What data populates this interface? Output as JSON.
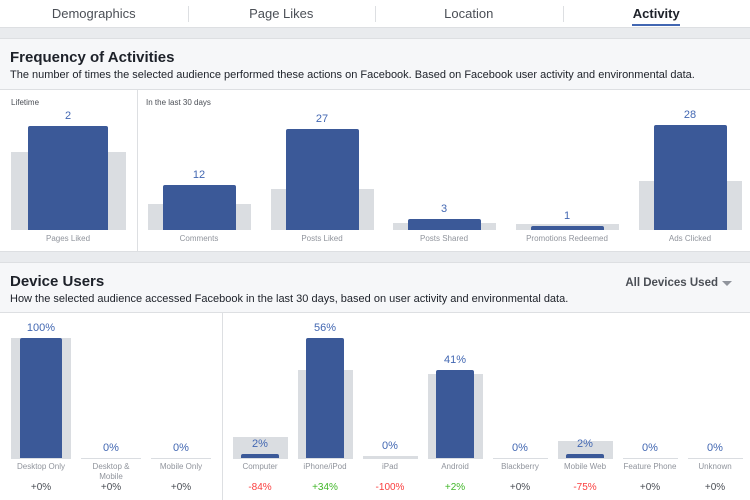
{
  "tabs": [
    {
      "label": "Demographics",
      "active": false
    },
    {
      "label": "Page Likes",
      "active": false
    },
    {
      "label": "Location",
      "active": false
    },
    {
      "label": "Activity",
      "active": true
    }
  ],
  "frequency": {
    "title": "Frequency of Activities",
    "subtitle": "The number of times the selected audience performed these actions on Facebook. Based on Facebook user activity and environmental data.",
    "lifetime_label": "Lifetime",
    "last30_label": "In the last 30 days"
  },
  "device": {
    "title": "Device Users",
    "subtitle": "How the selected audience accessed Facebook in the last 30 days, based on user activity and environmental data.",
    "dropdown_label": "All Devices Used"
  },
  "colors": {
    "audience": "#3b5998",
    "comparison": "#dadde1",
    "value_text": "#4267b2",
    "positive": "#42b72a",
    "negative": "#fa3e3e",
    "neutral": "#4b4f56"
  },
  "chart_data": [
    {
      "type": "bar",
      "title": "Frequency of Activities",
      "panel": "Lifetime",
      "categories": [
        "Pages Liked"
      ],
      "series": [
        {
          "values": [
            2
          ]
        },
        {
          "values": [
            1.5
          ]
        }
      ],
      "ylim": [
        0,
        2.3
      ]
    },
    {
      "type": "bar",
      "title": "Frequency of Activities",
      "panel": "In the last 30 days",
      "categories": [
        "Comments",
        "Posts Liked",
        "Posts Shared",
        "Promotions Redeemed",
        "Ads Clicked"
      ],
      "series": [
        {
          "values": [
            12,
            27,
            3,
            1,
            28
          ]
        },
        {
          "values": [
            7,
            11,
            2,
            1.5,
            13
          ]
        }
      ],
      "ylim": [
        0,
        32
      ]
    },
    {
      "type": "bar",
      "title": "Device Users",
      "categories": [
        "Desktop Only",
        "Desktop & Mobile",
        "Mobile Only"
      ],
      "series": [
        {
          "values": [
            100,
            0,
            0
          ]
        },
        {
          "values": [
            100,
            0,
            0
          ]
        }
      ],
      "changes": [
        "+0%",
        "+0%",
        "+0%"
      ],
      "ylim": [
        0,
        100
      ]
    },
    {
      "type": "bar",
      "title": "Device Users",
      "categories": [
        "Computer",
        "iPhone/iPod",
        "iPad",
        "Android",
        "Blackberry",
        "Mobile Web",
        "Feature Phone",
        "Unknown"
      ],
      "series": [
        {
          "values": [
            2,
            56,
            0,
            41,
            0,
            2,
            0,
            0
          ]
        },
        {
          "values": [
            10,
            41,
            1,
            39,
            0,
            8,
            0,
            0
          ]
        }
      ],
      "value_labels": [
        "2%",
        "56%",
        "0%",
        "41%",
        "0%",
        "2%",
        "0%",
        "0%"
      ],
      "changes": [
        "-84%",
        "+34%",
        "-100%",
        "+2%",
        "+0%",
        "-75%",
        "+0%",
        "+0%"
      ],
      "ylim": [
        0,
        56
      ]
    }
  ],
  "device_desktop_labels": [
    "100%",
    "0%",
    "0%"
  ]
}
